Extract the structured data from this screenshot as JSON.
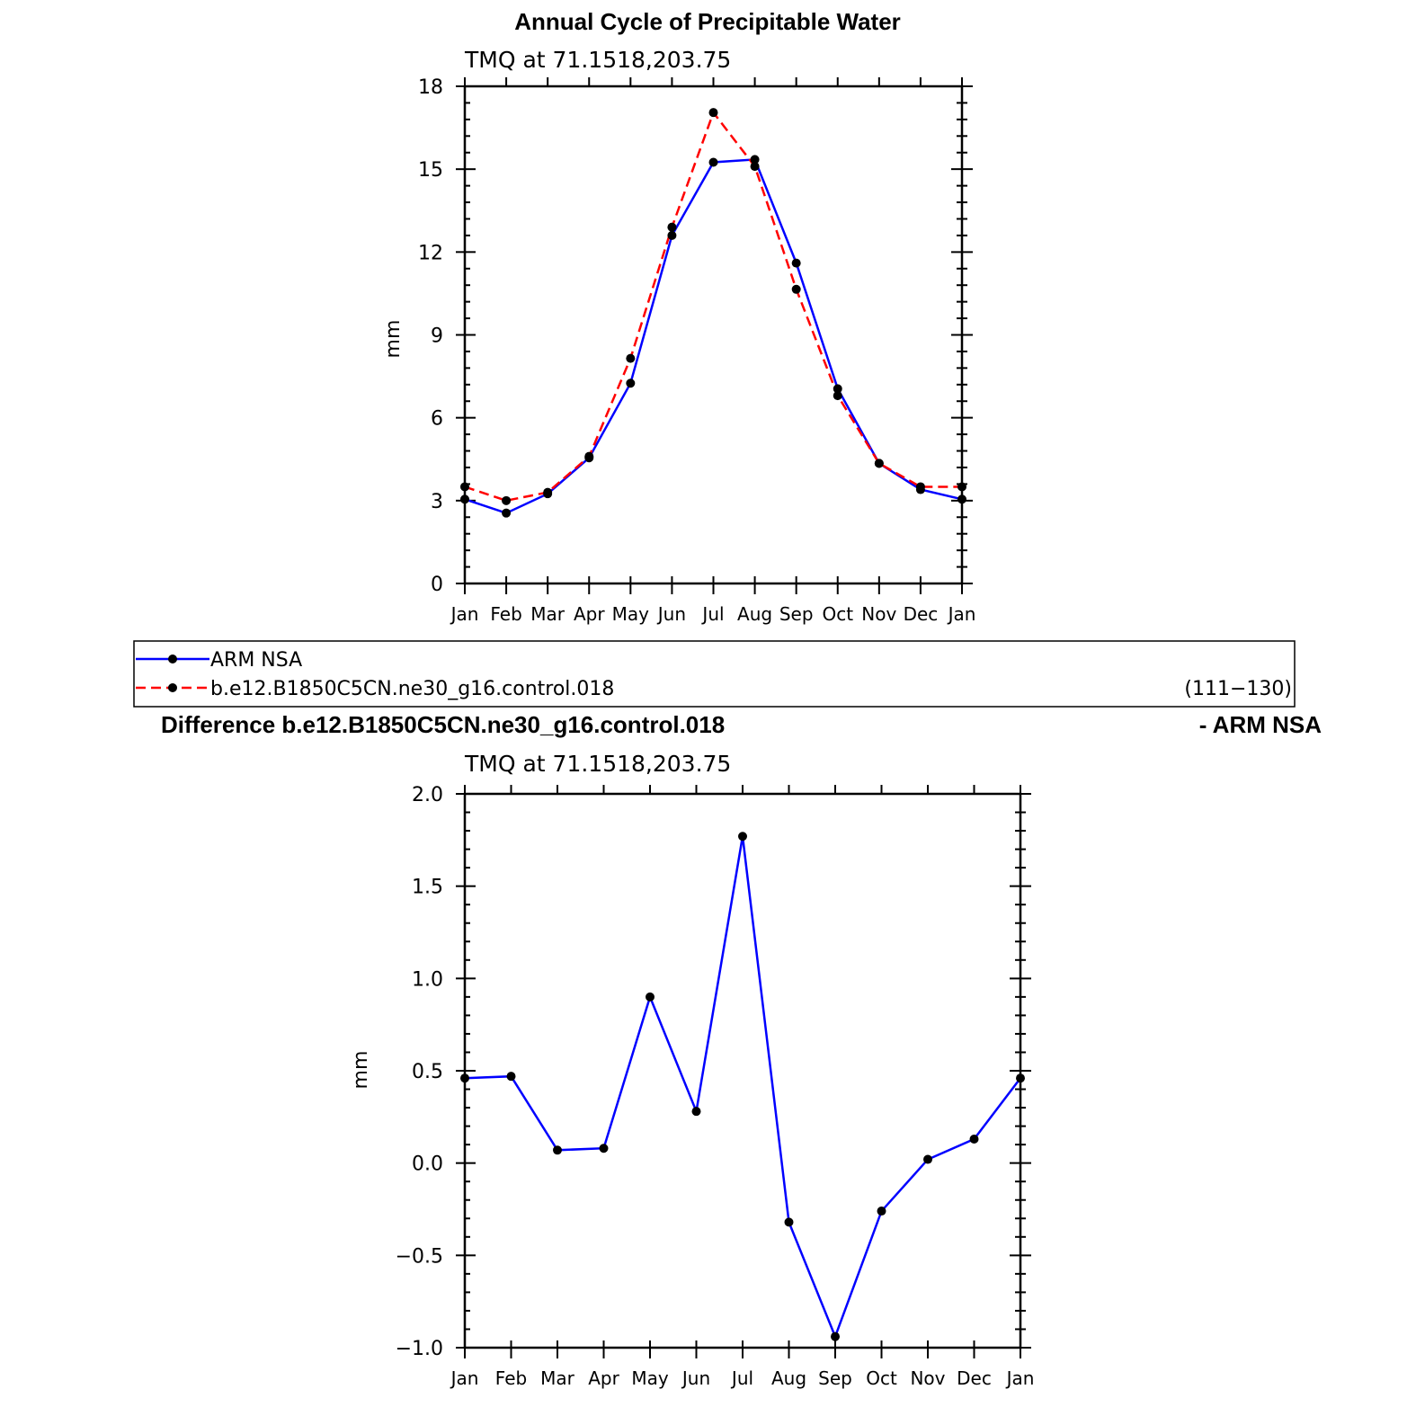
{
  "chart_data": [
    {
      "type": "line",
      "title": "Annual Cycle of Precipitable Water",
      "subtitle": "TMQ  at  71.1518,203.75",
      "ylabel": "mm",
      "categories": [
        "Jan",
        "Feb",
        "Mar",
        "Apr",
        "May",
        "Jun",
        "Jul",
        "Aug",
        "Sep",
        "Oct",
        "Nov",
        "Dec",
        "Jan"
      ],
      "ylim": [
        0,
        18
      ],
      "yticks": [
        "0",
        "3",
        "6",
        "9",
        "12",
        "15",
        "18"
      ],
      "series": [
        {
          "name": "ARM  NSA",
          "color": "#0000ff",
          "dash": "solid",
          "values": [
            3.05,
            2.55,
            3.25,
            4.55,
            7.25,
            12.6,
            15.25,
            15.35,
            11.6,
            7.05,
            4.35,
            3.4,
            3.05
          ]
        },
        {
          "name": "b.e12.B1850C5CN.ne30_g16.control.018",
          "color": "#ff0000",
          "dash": "dashed",
          "values": [
            3.5,
            3.0,
            3.3,
            4.6,
            8.15,
            12.9,
            17.05,
            15.1,
            10.65,
            6.8,
            4.35,
            3.5,
            3.5
          ]
        }
      ],
      "legend": {
        "position": "bottom",
        "note": "(111−130)"
      }
    },
    {
      "type": "line",
      "title": "Difference b.e12.B1850C5CN.ne30_g16.control.018",
      "title_right": "- ARM NSA",
      "subtitle": "TMQ  at  71.1518,203.75",
      "ylabel": "mm",
      "categories": [
        "Jan",
        "Feb",
        "Mar",
        "Apr",
        "May",
        "Jun",
        "Jul",
        "Aug",
        "Sep",
        "Oct",
        "Nov",
        "Dec",
        "Jan"
      ],
      "ylim": [
        -1.0,
        2.0
      ],
      "yticks": [
        "−1.0",
        "−0.5",
        "0.0",
        "0.5",
        "1.0",
        "1.5",
        "2.0"
      ],
      "series": [
        {
          "color": "#0000ff",
          "dash": "solid",
          "values": [
            0.46,
            0.47,
            0.07,
            0.08,
            0.9,
            0.28,
            1.77,
            -0.32,
            -0.94,
            -0.26,
            0.02,
            0.13,
            0.46
          ]
        }
      ]
    }
  ]
}
